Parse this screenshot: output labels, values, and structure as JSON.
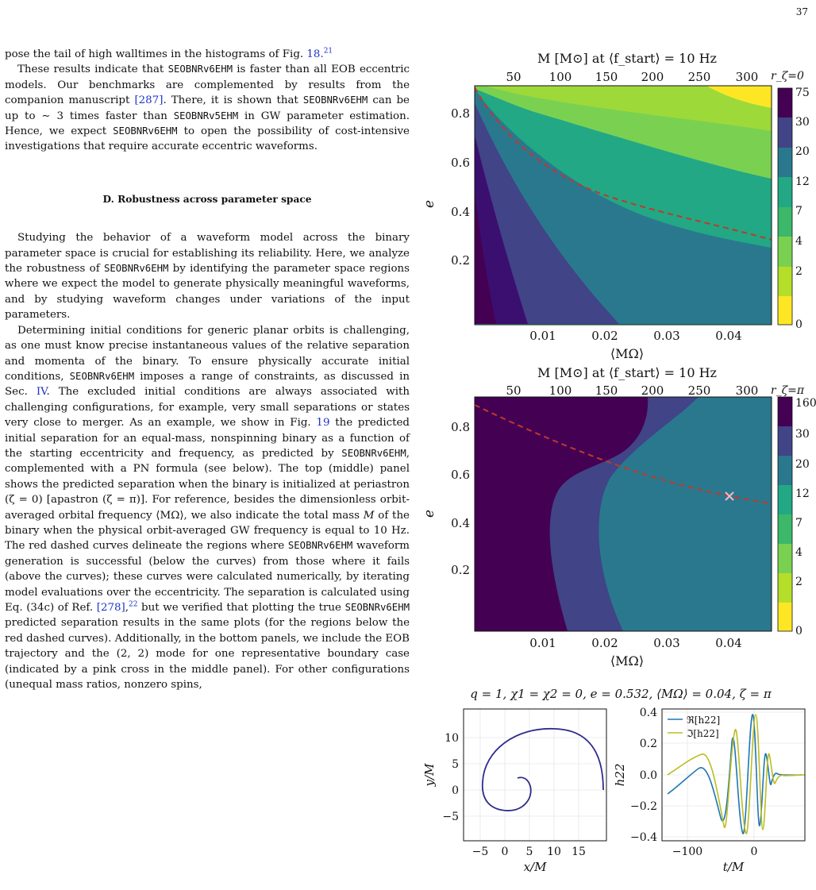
{
  "page_number": "37",
  "text": {
    "p0": "pose the tail of high walltimes in the histograms of Fig. ",
    "p0_ref": "18.",
    "p0_sup": "21",
    "p1a": "These results indicate that ",
    "p1b": " is faster than all EOB eccentric models. Our benchmarks are complemented by results from the companion manuscript ",
    "p1_ref": "[287]",
    "p1c": ". There, it is shown that ",
    "p1d": " can be up to ∼ 3 times faster than ",
    "p1e": " in GW parameter estimation. Hence, we expect ",
    "p1f": " to open the possibility of cost-intensive investigations that require accurate eccentric waveforms.",
    "section": "D.    Robustness across parameter space",
    "p2a": "Studying the behavior of a waveform model across the binary parameter space is crucial for establishing its reliability. Here, we analyze the robustness of ",
    "p2b": " by identifying the parameter space regions where we expect the model to generate physically meaningful waveforms, and by studying waveform changes under variations of the input parameters.",
    "p3a": "Determining initial conditions for generic planar orbits is challenging, as one must know precise instantaneous values of the relative separation and momenta of the binary. To ensure physically accurate initial conditions, ",
    "p3b": " imposes a range of constraints, as discussed in Sec. ",
    "p3_ref1": "IV",
    "p3c": ". The excluded initial conditions are always associated with challenging configurations, for example, very small separations or states very close to merger. As an example, we show in Fig. ",
    "p3_ref2": "19",
    "p3d": " the predicted initial separation for an equal-mass, nonspinning binary as a function of the starting eccentricity and frequency, as predicted by ",
    "p3e": ", complemented with a PN formula (see below). The top (middle) panel shows the predicted separation when the binary is initialized at periastron (ζ = 0) [apastron (ζ = π)]. For reference, besides the dimensionless orbit-averaged orbital frequency ⟨MΩ⟩, we also indicate the total mass ",
    "p3_M": "M",
    "p3f": " of the binary when the physical orbit-averaged GW frequency is equal to 10 Hz. The red dashed curves delineate the regions where ",
    "p3g": " waveform generation is successful (below the curves) from those where it fails (above the curves); these curves were calculated numerically, by iterating model evaluations over the eccentricity. The separation is calculated using Eq. (34c) of Ref. ",
    "p3_ref3": "[278]",
    "p3h": ",",
    "p3_sup": "22",
    "p3i": " but we verified that plotting the true ",
    "p3j": " predicted separation results in the same plots (for the regions below the red dashed curves). Additionally, in the bottom panels, we include the EOB trajectory and the (2, 2) mode for one representative boundary case (indicated by a pink cross in the middle panel). For other configurations (unequal mass ratios, nonzero spins,",
    "model6": "SEOBNRv6EHM",
    "model5": "SEOBNRv5EHM"
  },
  "figure": {
    "top_axis_label": "M [M⊙] at ⟨f_start⟩ = 10 Hz",
    "top_ticks": [
      "50",
      "100",
      "150",
      "200",
      "250",
      "300"
    ],
    "x_ticks": [
      "0.01",
      "0.02",
      "0.03",
      "0.04"
    ],
    "x_label": "⟨MΩ⟩",
    "y_label": "e",
    "y_ticks": [
      "0.2",
      "0.4",
      "0.6",
      "0.8"
    ],
    "cb1_label": "r_ζ=0",
    "cb1_ticks": [
      "75",
      "30",
      "20",
      "12",
      "7",
      "4",
      "2",
      "0"
    ],
    "cb2_label": "r_ζ=π",
    "cb2_ticks": [
      "160",
      "30",
      "20",
      "12",
      "7",
      "4",
      "2",
      "0"
    ],
    "colors": [
      "#fde725",
      "#7ad151",
      "#22a884",
      "#2a788e",
      "#414487",
      "#440154"
    ],
    "boundary_color": "#c0392b",
    "cross_point": {
      "x": 0.04,
      "e": 0.532
    },
    "bottom_title": "q = 1,  χ1 = χ2 = 0,  e = 0.532,  ⟨MΩ⟩ = 0.04,  ζ = π",
    "traj": {
      "x_label": "x/M",
      "y_label": "y/M",
      "x_ticks": [
        "−5",
        "0",
        "5",
        "10",
        "15"
      ],
      "y_ticks": [
        "10",
        "5",
        "0",
        "−5"
      ]
    },
    "wave": {
      "x_label": "t/M",
      "y_label": "h22",
      "x_ticks": [
        "−100",
        "0"
      ],
      "y_ticks": [
        "0.4",
        "0.2",
        "0.0",
        "−0.2",
        "−0.4"
      ],
      "legend": [
        "ℜ[h22]",
        "ℑ[h22]"
      ],
      "colors": [
        "#1f77b4",
        "#bcbd22"
      ]
    }
  }
}
